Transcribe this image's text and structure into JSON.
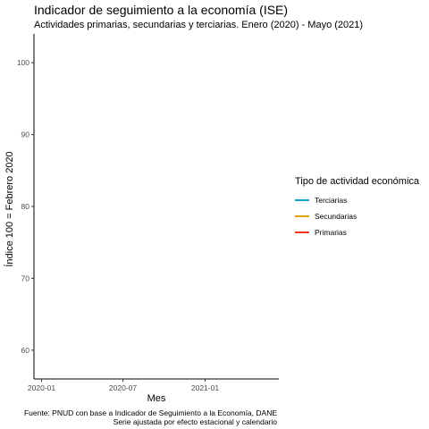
{
  "chart_data": {
    "type": "line",
    "title": "Indicador de seguimiento a la economía (ISE)",
    "subtitle": "Actividades primarias, secundarias y terciarias. Enero (2020) - Mayo (2021)",
    "xlabel": "Mes",
    "ylabel": "Índice 100 = Febrero 2020",
    "x_ticks": [
      "2020-01",
      "2020-07",
      "2021-01"
    ],
    "y_ticks": [
      60,
      70,
      80,
      90,
      100
    ],
    "ylim": [
      56,
      104
    ],
    "xlim": [
      "2019-12-15",
      "2021-06-15"
    ],
    "grid": false,
    "legend_position": "right",
    "legend_title": "Tipo de actividad económica",
    "series": [
      {
        "name": "Terciarias",
        "color": "#1aa3c9",
        "values": []
      },
      {
        "name": "Secundarias",
        "color": "#e6a100",
        "values": []
      },
      {
        "name": "Primarias",
        "color": "#f0391e",
        "values": []
      }
    ],
    "caption": [
      "Fuente: PNUD con base a Indicador de Seguimiento a la Economía, DANE",
      "Serie ajustada por efecto estacional y calendario"
    ]
  }
}
